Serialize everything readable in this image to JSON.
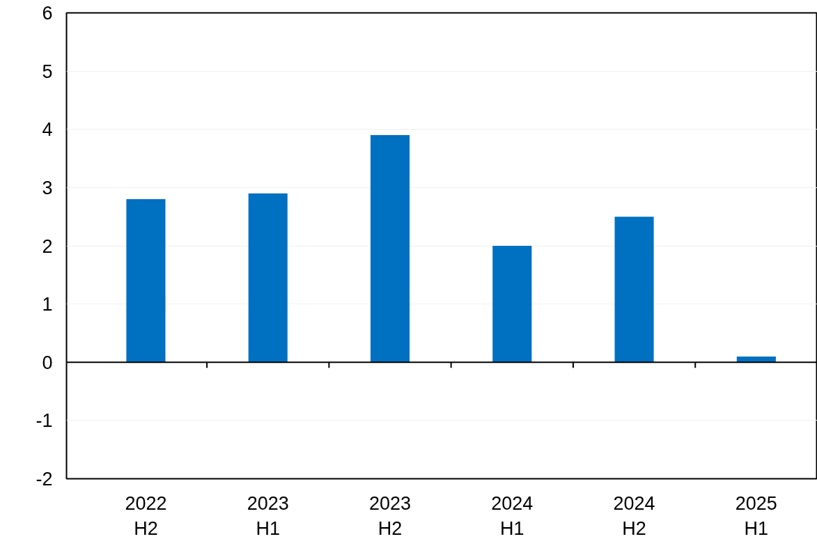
{
  "chart_data": {
    "type": "bar",
    "categories": [
      "2022\nH2",
      "2023\nH1",
      "2023\nH2",
      "2024\nH1",
      "2024\nH2",
      "2025\nH1"
    ],
    "values": [
      2.8,
      2.9,
      3.9,
      2.0,
      2.5,
      0.1
    ],
    "color": "#0070c0",
    "ylim": [
      -2,
      6
    ],
    "yticks": [
      -2,
      -1,
      0,
      1,
      2,
      3,
      4,
      5,
      6
    ],
    "grid": "y"
  }
}
